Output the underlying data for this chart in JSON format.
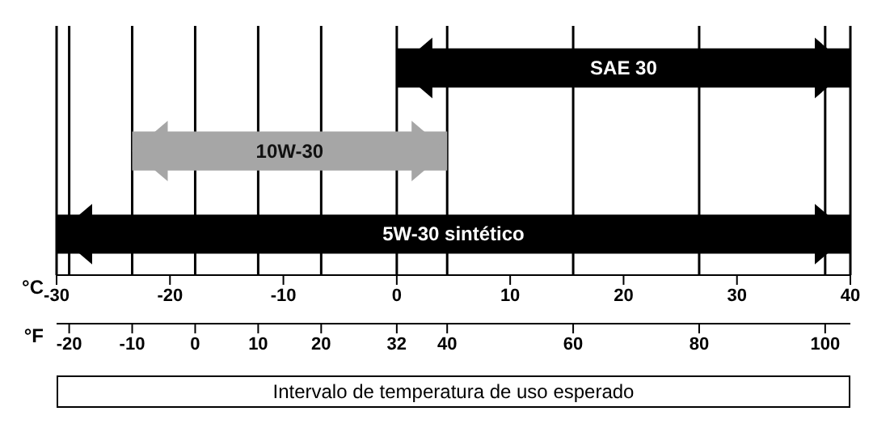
{
  "chart_data": {
    "type": "bar",
    "orientation": "horizontal",
    "categories": [
      "SAE 30",
      "10W-30",
      "5W-30 sintético"
    ],
    "base": [
      32,
      -10,
      -22
    ],
    "values": [
      72,
      50,
      126
    ],
    "colors": [
      "#000000",
      "#a6a6a6",
      "#000000"
    ],
    "xlabel": "°F",
    "x2label": "°C",
    "xlim": [
      -22,
      104
    ],
    "xticks": [
      -20,
      -10,
      0,
      10,
      20,
      32,
      40,
      60,
      80,
      100
    ],
    "x2lim": [
      -30,
      40
    ],
    "x2ticks": [
      -30,
      -20,
      -10,
      0,
      10,
      20,
      30,
      40
    ],
    "grid": "x",
    "tick_labels": "x",
    "annotations": [
      "Intervalo de temperatura de uso esperado"
    ]
  }
}
